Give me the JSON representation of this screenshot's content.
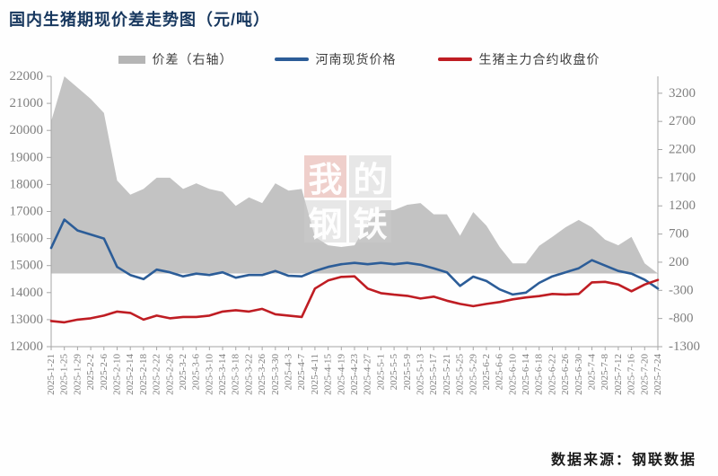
{
  "title": "国内生猪期现价差走势图（元/吨）",
  "source": "数据来源：钢联数据",
  "watermark": {
    "tiles": [
      "我",
      "的",
      "钢",
      "铁"
    ]
  },
  "legend": {
    "spread_label": "价差（右轴）",
    "spot_label": "河南现货价格",
    "futures_label": "生猪主力合约收盘价"
  },
  "colors": {
    "title": "#17375e",
    "area": "#c3c3c3",
    "area_swatch": "#b5b5b5",
    "spot_line": "#2c5d98",
    "futures_line": "#bf1d23",
    "axis": "#a6a6a6",
    "tick_text": "#808080"
  },
  "chart_data": {
    "type": "area+line combo",
    "title": "国内生猪期现价差走势图（元/吨）",
    "grid": false,
    "legend_position": "top-center",
    "x": [
      "2025-1-21",
      "2025-1-25",
      "2025-1-29",
      "2025-2-2",
      "2025-2-6",
      "2025-2-10",
      "2025-2-14",
      "2025-2-18",
      "2025-2-22",
      "2025-2-26",
      "2025-3-2",
      "2025-3-6",
      "2025-3-10",
      "2025-3-14",
      "2025-3-18",
      "2025-3-22",
      "2025-3-26",
      "2025-3-30",
      "2025-4-3",
      "2025-4-7",
      "2025-4-11",
      "2025-4-15",
      "2025-4-19",
      "2025-4-23",
      "2025-4-27",
      "2025-5-1",
      "2025-5-5",
      "2025-5-9",
      "2025-5-13",
      "2025-5-17",
      "2025-5-21",
      "2025-5-25",
      "2025-5-29",
      "2025-6-2",
      "2025-6-6",
      "2025-6-10",
      "2025-6-14",
      "2025-6-18",
      "2025-6-22",
      "2025-6-26",
      "2025-6-30",
      "2025-7-4",
      "2025-7-8",
      "2025-7-12",
      "2025-7-16",
      "2025-7-20",
      "2025-7-24"
    ],
    "series": [
      {
        "name": "价差（右轴）",
        "type": "area",
        "axis": "right",
        "color": "#c3c3c3",
        "values": [
          2700,
          3800,
          3300,
          3100,
          2850,
          1650,
          1400,
          1500,
          1700,
          1700,
          1500,
          1600,
          1500,
          1450,
          1200,
          1350,
          1250,
          1600,
          1470,
          1500,
          650,
          500,
          470,
          500,
          900,
          1120,
          1125,
          1220,
          1250,
          1050,
          1050,
          670,
          1090,
          850,
          470,
          180,
          180,
          490,
          650,
          820,
          950,
          820,
          600,
          500,
          650,
          180,
          -320
        ]
      },
      {
        "name": "河南现货价格",
        "type": "line",
        "axis": "left",
        "color": "#2c5d98",
        "values": [
          15650,
          16700,
          16300,
          16150,
          16000,
          14950,
          14650,
          14500,
          14850,
          14750,
          14600,
          14700,
          14650,
          14750,
          14550,
          14650,
          14650,
          14800,
          14620,
          14600,
          14800,
          14950,
          15050,
          15100,
          15050,
          15100,
          15050,
          15100,
          15030,
          14900,
          14750,
          14250,
          14590,
          14430,
          14120,
          13930,
          14000,
          14360,
          14600,
          14750,
          14900,
          15200,
          15000,
          14800,
          14700,
          14480,
          14150
        ]
      },
      {
        "name": "生猪主力合约收盘价",
        "type": "line",
        "axis": "left",
        "color": "#bf1d23",
        "values": [
          12950,
          12900,
          13000,
          13050,
          13150,
          13300,
          13250,
          13000,
          13150,
          13050,
          13100,
          13100,
          13150,
          13300,
          13350,
          13300,
          13400,
          13200,
          13150,
          13100,
          14150,
          14450,
          14580,
          14600,
          14150,
          13980,
          13925,
          13880,
          13780,
          13850,
          13700,
          13580,
          13500,
          13580,
          13650,
          13750,
          13820,
          13870,
          13950,
          13930,
          13950,
          14380,
          14400,
          14300,
          14050,
          14300,
          14470
        ]
      }
    ],
    "left_axis": {
      "min": 12000,
      "max": 22000,
      "step": 1000,
      "ticks": [
        22000,
        21000,
        20000,
        19000,
        18000,
        17000,
        16000,
        15000,
        14000,
        13000,
        12000
      ]
    },
    "right_axis": {
      "min": -1300,
      "max": 3500,
      "step": 500,
      "ticks": [
        3200,
        2700,
        2200,
        1700,
        1200,
        700,
        200,
        -300,
        -800,
        -1300
      ]
    }
  }
}
